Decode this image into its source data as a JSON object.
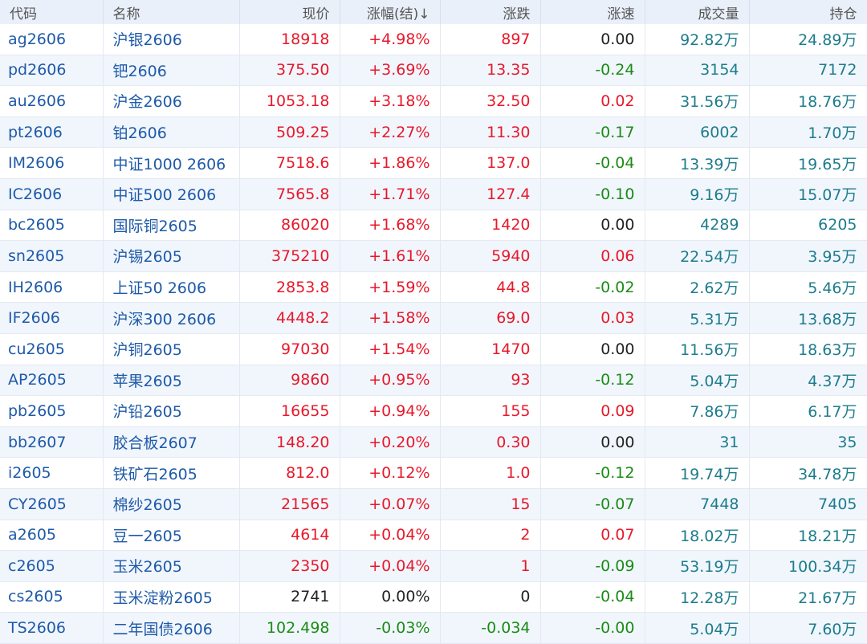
{
  "colors": {
    "up": "#e8182a",
    "down": "#1a8c14",
    "flat": "#222222",
    "link": "#1e5aa8",
    "volume": "#1d7c8c",
    "header_bg": "#e9f0fa",
    "row_alt_bg": "#f1f6fd"
  },
  "table": {
    "headers": [
      "代码",
      "名称",
      "现价",
      "涨幅(结)↓",
      "涨跌",
      "涨速",
      "成交量",
      "持仓"
    ],
    "rows": [
      {
        "code": "ag2606",
        "name": "沪银2606",
        "price": "18918",
        "pct": "+4.98%",
        "change": "897",
        "speed": "0.00",
        "volume": "92.82万",
        "oi": "24.89万",
        "dir": "up",
        "speed_dir": "flat"
      },
      {
        "code": "pd2606",
        "name": "钯2606",
        "price": "375.50",
        "pct": "+3.69%",
        "change": "13.35",
        "speed": "-0.24",
        "volume": "3154",
        "oi": "7172",
        "dir": "up",
        "speed_dir": "down"
      },
      {
        "code": "au2606",
        "name": "沪金2606",
        "price": "1053.18",
        "pct": "+3.18%",
        "change": "32.50",
        "speed": "0.02",
        "volume": "31.56万",
        "oi": "18.76万",
        "dir": "up",
        "speed_dir": "up"
      },
      {
        "code": "pt2606",
        "name": "铂2606",
        "price": "509.25",
        "pct": "+2.27%",
        "change": "11.30",
        "speed": "-0.17",
        "volume": "6002",
        "oi": "1.70万",
        "dir": "up",
        "speed_dir": "down"
      },
      {
        "code": "IM2606",
        "name": "中证1000 2606",
        "price": "7518.6",
        "pct": "+1.86%",
        "change": "137.0",
        "speed": "-0.04",
        "volume": "13.39万",
        "oi": "19.65万",
        "dir": "up",
        "speed_dir": "down"
      },
      {
        "code": "IC2606",
        "name": "中证500 2606",
        "price": "7565.8",
        "pct": "+1.71%",
        "change": "127.4",
        "speed": "-0.10",
        "volume": "9.16万",
        "oi": "15.07万",
        "dir": "up",
        "speed_dir": "down"
      },
      {
        "code": "bc2605",
        "name": "国际铜2605",
        "price": "86020",
        "pct": "+1.68%",
        "change": "1420",
        "speed": "0.00",
        "volume": "4289",
        "oi": "6205",
        "dir": "up",
        "speed_dir": "flat"
      },
      {
        "code": "sn2605",
        "name": "沪锡2605",
        "price": "375210",
        "pct": "+1.61%",
        "change": "5940",
        "speed": "0.06",
        "volume": "22.54万",
        "oi": "3.95万",
        "dir": "up",
        "speed_dir": "up"
      },
      {
        "code": "IH2606",
        "name": "上证50 2606",
        "price": "2853.8",
        "pct": "+1.59%",
        "change": "44.8",
        "speed": "-0.02",
        "volume": "2.62万",
        "oi": "5.46万",
        "dir": "up",
        "speed_dir": "down"
      },
      {
        "code": "IF2606",
        "name": "沪深300 2606",
        "price": "4448.2",
        "pct": "+1.58%",
        "change": "69.0",
        "speed": "0.03",
        "volume": "5.31万",
        "oi": "13.68万",
        "dir": "up",
        "speed_dir": "up"
      },
      {
        "code": "cu2605",
        "name": "沪铜2605",
        "price": "97030",
        "pct": "+1.54%",
        "change": "1470",
        "speed": "0.00",
        "volume": "11.56万",
        "oi": "18.63万",
        "dir": "up",
        "speed_dir": "flat"
      },
      {
        "code": "AP2605",
        "name": "苹果2605",
        "price": "9860",
        "pct": "+0.95%",
        "change": "93",
        "speed": "-0.12",
        "volume": "5.04万",
        "oi": "4.37万",
        "dir": "up",
        "speed_dir": "down"
      },
      {
        "code": "pb2605",
        "name": "沪铅2605",
        "price": "16655",
        "pct": "+0.94%",
        "change": "155",
        "speed": "0.09",
        "volume": "7.86万",
        "oi": "6.17万",
        "dir": "up",
        "speed_dir": "up"
      },
      {
        "code": "bb2607",
        "name": "胶合板2607",
        "price": "148.20",
        "pct": "+0.20%",
        "change": "0.30",
        "speed": "0.00",
        "volume": "31",
        "oi": "35",
        "dir": "up",
        "speed_dir": "flat"
      },
      {
        "code": "i2605",
        "name": "铁矿石2605",
        "price": "812.0",
        "pct": "+0.12%",
        "change": "1.0",
        "speed": "-0.12",
        "volume": "19.74万",
        "oi": "34.78万",
        "dir": "up",
        "speed_dir": "down"
      },
      {
        "code": "CY2605",
        "name": "棉纱2605",
        "price": "21565",
        "pct": "+0.07%",
        "change": "15",
        "speed": "-0.07",
        "volume": "7448",
        "oi": "7405",
        "dir": "up",
        "speed_dir": "down"
      },
      {
        "code": "a2605",
        "name": "豆一2605",
        "price": "4614",
        "pct": "+0.04%",
        "change": "2",
        "speed": "0.07",
        "volume": "18.02万",
        "oi": "18.21万",
        "dir": "up",
        "speed_dir": "up"
      },
      {
        "code": "c2605",
        "name": "玉米2605",
        "price": "2350",
        "pct": "+0.04%",
        "change": "1",
        "speed": "-0.09",
        "volume": "53.19万",
        "oi": "100.34万",
        "dir": "up",
        "speed_dir": "down"
      },
      {
        "code": "cs2605",
        "name": "玉米淀粉2605",
        "price": "2741",
        "pct": "0.00%",
        "change": "0",
        "speed": "-0.04",
        "volume": "12.28万",
        "oi": "21.67万",
        "dir": "flat",
        "speed_dir": "down"
      },
      {
        "code": "TS2606",
        "name": "二年国债2606",
        "price": "102.498",
        "pct": "-0.03%",
        "change": "-0.034",
        "speed": "-0.00",
        "volume": "5.04万",
        "oi": "7.60万",
        "dir": "down",
        "speed_dir": "down"
      }
    ]
  }
}
